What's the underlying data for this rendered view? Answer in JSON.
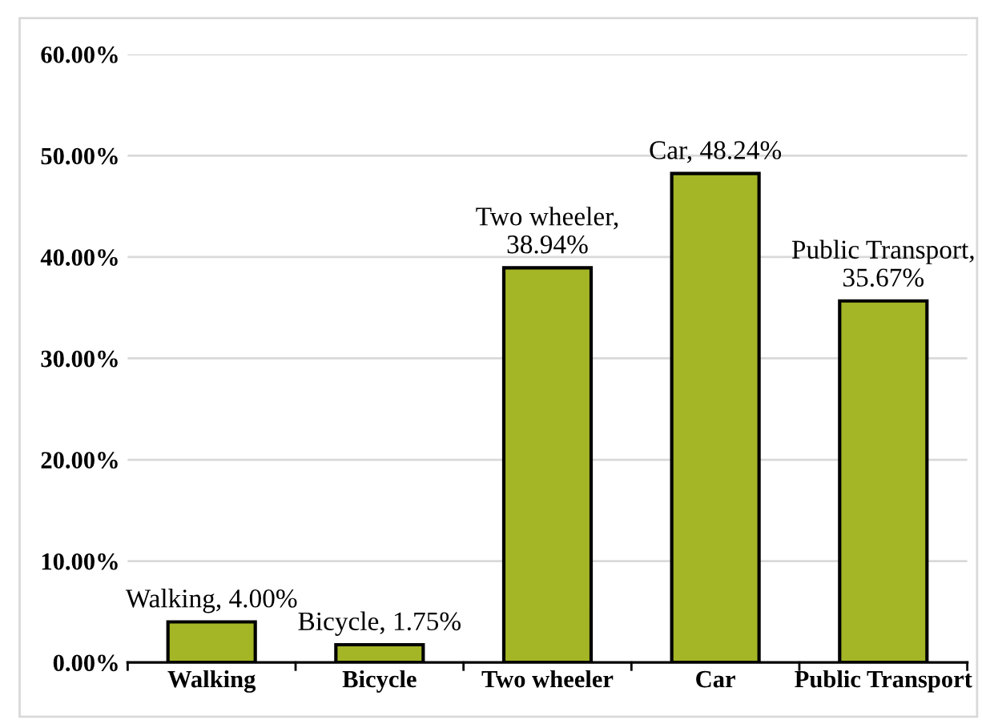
{
  "chart_data": {
    "type": "bar",
    "categories": [
      "Walking",
      "Bicycle",
      "Two wheeler",
      "Car",
      "Public Transport"
    ],
    "values": [
      4.0,
      1.75,
      38.94,
      48.24,
      35.67
    ],
    "value_labels": [
      "Walking, 4.00%",
      "Bicycle, 1.75%",
      "Two wheeler,\n38.94%",
      "Car, 48.24%",
      "Public Transport,\n35.67%"
    ],
    "color": "#a4b526",
    "ylim": [
      0,
      60
    ],
    "yticks": [
      {
        "value": 0,
        "label": "0.00%"
      },
      {
        "value": 10,
        "label": "10.00%"
      },
      {
        "value": 20,
        "label": "20.00%"
      },
      {
        "value": 30,
        "label": "30.00%"
      },
      {
        "value": 40,
        "label": "40.00%"
      },
      {
        "value": 50,
        "label": "50.00%"
      },
      {
        "value": 60,
        "label": "60.00%"
      }
    ],
    "grid": "y"
  }
}
